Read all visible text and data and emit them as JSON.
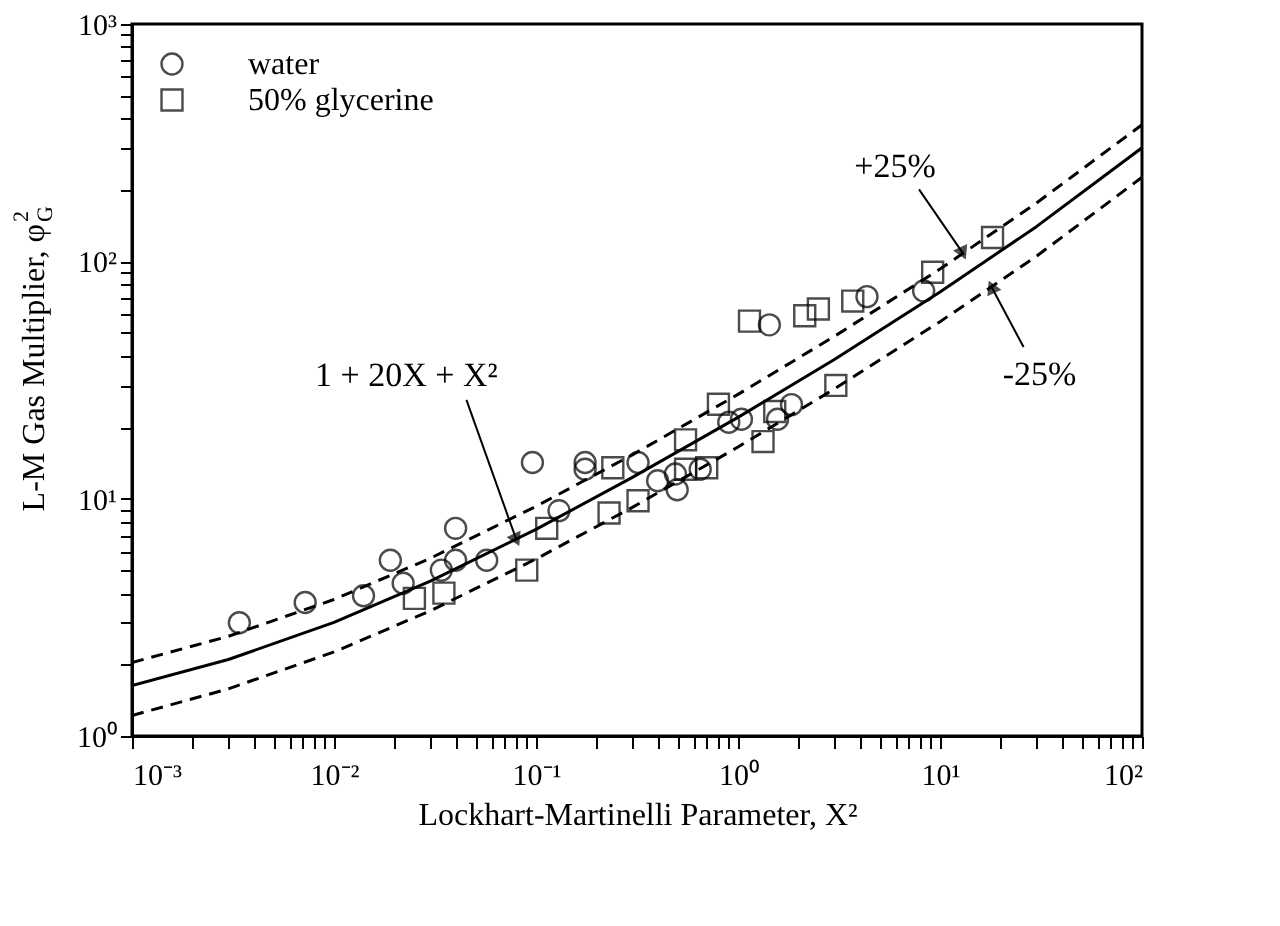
{
  "chart_data": {
    "type": "scatter",
    "xlabel": "Lockhart-Martinelli Parameter, X²",
    "ylabel": "L-M Gas Multiplier, φ$_{G}$$^{2}$",
    "log": "xy",
    "grid": false,
    "legend": "top left",
    "xlim": [
      0.001,
      100
    ],
    "ylim": [
      1,
      1000
    ],
    "xticks": [
      {
        "value": 0.001,
        "label": "10⁻³"
      },
      {
        "value": 0.002,
        "label": null
      },
      {
        "value": 0.003,
        "label": null
      },
      {
        "value": 0.004,
        "label": null
      },
      {
        "value": 0.005,
        "label": null
      },
      {
        "value": 0.006,
        "label": null
      },
      {
        "value": 0.007,
        "label": null
      },
      {
        "value": 0.008,
        "label": null
      },
      {
        "value": 0.009,
        "label": null
      },
      {
        "value": 0.01,
        "label": "10⁻²"
      },
      {
        "value": 0.02,
        "label": null
      },
      {
        "value": 0.03,
        "label": null
      },
      {
        "value": 0.04,
        "label": null
      },
      {
        "value": 0.05,
        "label": null
      },
      {
        "value": 0.06,
        "label": null
      },
      {
        "value": 0.07,
        "label": null
      },
      {
        "value": 0.08,
        "label": null
      },
      {
        "value": 0.09,
        "label": null
      },
      {
        "value": 0.1,
        "label": "10⁻¹"
      },
      {
        "value": 0.2,
        "label": null
      },
      {
        "value": 0.3,
        "label": null
      },
      {
        "value": 0.4,
        "label": null
      },
      {
        "value": 0.5,
        "label": null
      },
      {
        "value": 0.6,
        "label": null
      },
      {
        "value": 0.7,
        "label": null
      },
      {
        "value": 0.8,
        "label": null
      },
      {
        "value": 0.9,
        "label": null
      },
      {
        "value": 1,
        "label": "10⁰"
      },
      {
        "value": 2,
        "label": null
      },
      {
        "value": 3,
        "label": null
      },
      {
        "value": 4,
        "label": null
      },
      {
        "value": 5,
        "label": null
      },
      {
        "value": 6,
        "label": null
      },
      {
        "value": 7,
        "label": null
      },
      {
        "value": 8,
        "label": null
      },
      {
        "value": 9,
        "label": null
      },
      {
        "value": 10,
        "label": "10¹"
      },
      {
        "value": 20,
        "label": null
      },
      {
        "value": 30,
        "label": null
      },
      {
        "value": 40,
        "label": null
      },
      {
        "value": 50,
        "label": null
      },
      {
        "value": 60,
        "label": null
      },
      {
        "value": 70,
        "label": null
      },
      {
        "value": 80,
        "label": null
      },
      {
        "value": 90,
        "label": null
      },
      {
        "value": 100,
        "label": "10²"
      }
    ],
    "yticks": [
      {
        "value": 1,
        "label": "10⁰"
      },
      {
        "value": 2,
        "label": null
      },
      {
        "value": 3,
        "label": null
      },
      {
        "value": 4,
        "label": null
      },
      {
        "value": 5,
        "label": null
      },
      {
        "value": 6,
        "label": null
      },
      {
        "value": 7,
        "label": null
      },
      {
        "value": 8,
        "label": null
      },
      {
        "value": 9,
        "label": null
      },
      {
        "value": 10,
        "label": "10¹"
      },
      {
        "value": 20,
        "label": null
      },
      {
        "value": 30,
        "label": null
      },
      {
        "value": 40,
        "label": null
      },
      {
        "value": 50,
        "label": null
      },
      {
        "value": 60,
        "label": null
      },
      {
        "value": 70,
        "label": null
      },
      {
        "value": 80,
        "label": null
      },
      {
        "value": 90,
        "label": null
      },
      {
        "value": 100,
        "label": "10²"
      },
      {
        "value": 200,
        "label": null
      },
      {
        "value": 300,
        "label": null
      },
      {
        "value": 400,
        "label": null
      },
      {
        "value": 500,
        "label": null
      },
      {
        "value": 600,
        "label": null
      },
      {
        "value": 700,
        "label": null
      },
      {
        "value": 800,
        "label": null
      },
      {
        "value": 900,
        "label": null
      },
      {
        "value": 1000,
        "label": "10³"
      }
    ],
    "series": [
      {
        "type": "line",
        "line_style": "dashed",
        "color": "#000000",
        "x": [
          0.001,
          0.003,
          0.01,
          0.03,
          0.1,
          0.3,
          1,
          3,
          10,
          30,
          100
        ],
        "values": [
          2.04,
          2.63,
          3.76,
          5.61,
          9.28,
          15.3,
          27.5,
          48.3,
          92.8,
          176,
          376
        ]
      },
      {
        "type": "line",
        "line_style": "dashed",
        "color": "#000000",
        "x": [
          0.001,
          0.003,
          0.01,
          0.03,
          0.1,
          0.3,
          1,
          3,
          10,
          30,
          100
        ],
        "values": [
          1.22,
          1.58,
          2.26,
          3.37,
          5.57,
          9.19,
          16.5,
          29,
          55.7,
          105,
          226
        ]
      },
      {
        "type": "line",
        "line_style": "solid",
        "color": "#000000",
        "x": [
          0.001,
          0.003,
          0.01,
          0.03,
          0.1,
          0.3,
          1,
          3,
          10,
          30,
          100
        ],
        "values": [
          1.63,
          2.1,
          3.01,
          4.49,
          7.42,
          12.3,
          22,
          38.6,
          74.2,
          140,
          301
        ]
      },
      {
        "name": "water",
        "marker": "circle",
        "color": "#000000",
        "x": [
          0.0034,
          0.0072,
          0.014,
          0.019,
          0.022,
          0.034,
          0.04,
          0.04,
          0.057,
          0.096,
          0.13,
          0.175,
          0.175,
          0.32,
          0.4,
          0.49,
          0.5,
          0.65,
          0.9,
          1.04,
          1.57,
          1.84,
          1.43,
          4.35,
          8.3
        ],
        "values": [
          3.0,
          3.65,
          3.9,
          5.5,
          4.4,
          5.0,
          5.5,
          7.5,
          5.5,
          14.2,
          8.9,
          14.2,
          13.3,
          14.2,
          11.9,
          12.7,
          10.9,
          13.3,
          21,
          21.6,
          21.6,
          24.9,
          54,
          71,
          75
        ]
      },
      {
        "name": "50% glycerine",
        "marker": "square",
        "color": "#000000",
        "x": [
          0.025,
          0.035,
          0.09,
          0.113,
          0.23,
          0.24,
          0.32,
          0.55,
          0.55,
          0.7,
          0.8,
          1.33,
          1.52,
          1.14,
          2.14,
          2.5,
          3.05,
          3.7,
          9.2,
          18.2
        ],
        "values": [
          3.8,
          4.0,
          5.0,
          7.5,
          8.7,
          13.5,
          9.8,
          13.3,
          17.7,
          13.5,
          25,
          17.4,
          23.3,
          56,
          59,
          63,
          30,
          68,
          90,
          126
        ]
      }
    ],
    "annotations": [
      {
        "text": "1 + 20X + X²",
        "x": 0.08,
        "y": 6.7
      },
      {
        "text": "+25%",
        "x": 13,
        "y": 108
      },
      {
        "text": "-25%",
        "x": 18,
        "y": 78
      }
    ]
  }
}
